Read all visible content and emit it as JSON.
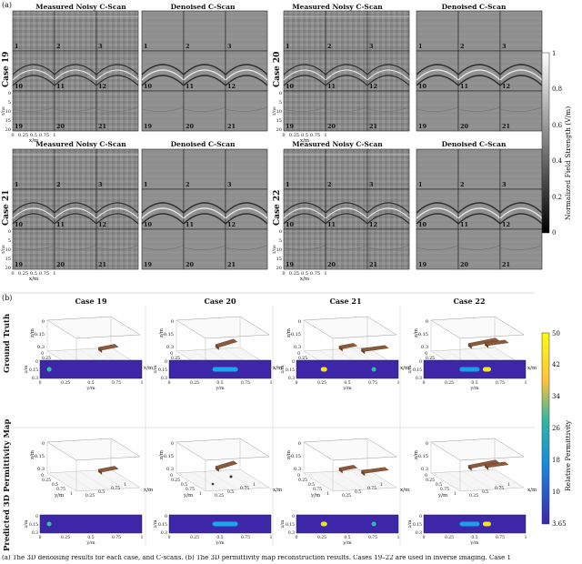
{
  "panel_a_label": "(a)",
  "panel_b_label": "(b)",
  "cscan_titles": {
    "noisy": "Measured Noisy C-Scan",
    "denoised": "Denoised C-Scan"
  },
  "cases_a": [
    {
      "label": "Case 19"
    },
    {
      "label": "Case 20"
    },
    {
      "label": "Case 21"
    },
    {
      "label": "Case 22"
    }
  ],
  "slice_numbers": [
    "1",
    "2",
    "3",
    "10",
    "11",
    "12",
    "19",
    "20",
    "21"
  ],
  "axis_time_label": "t/ns",
  "axis_time_ticks": [
    "0",
    "5",
    "10",
    "15",
    "20"
  ],
  "axis_x_label": "x/m",
  "axis_x_ticks": [
    "0",
    "0.25",
    "0.5",
    "0.75",
    "1"
  ],
  "colorbar_a": {
    "label": "Normalized Field Strength (V/m)",
    "ticks": [
      "1",
      "0.8",
      "0.6",
      "0.4",
      "0.2",
      "0"
    ]
  },
  "cases_b": [
    "Case 19",
    "Case 20",
    "Case 21",
    "Case 22"
  ],
  "row_labels_b": {
    "gt": "Ground Truth",
    "pred": "Predicted 3D Permittivity Map"
  },
  "axis3d": {
    "z": "z/m",
    "y": "y/m",
    "x": "x/m",
    "zticks": [
      "0",
      "0.15",
      "0.3"
    ],
    "yticks": [
      "0",
      "0.25",
      "0.5",
      "0.75",
      "1"
    ],
    "xticks": [
      "0.25",
      "0.5",
      "0.75",
      "1"
    ]
  },
  "topview": {
    "zlabel": "z/m",
    "zticks": [
      "0",
      "0.15",
      "0.3"
    ],
    "ylabel": "y/m",
    "yticks": [
      "0",
      "0.25",
      "0.5",
      "0.75",
      "1"
    ]
  },
  "colorbar_b": {
    "label": "Relative Permittivity",
    "ticks": [
      "50",
      "42",
      "34",
      "26",
      "18",
      "10",
      "3.65"
    ]
  },
  "caption": "(a) The 3D denoising results for each case, and C-scans. (b) The 3D permittivity map reconstruction results. Cases 19–22 are used in inverse imaging. Case 1"
}
